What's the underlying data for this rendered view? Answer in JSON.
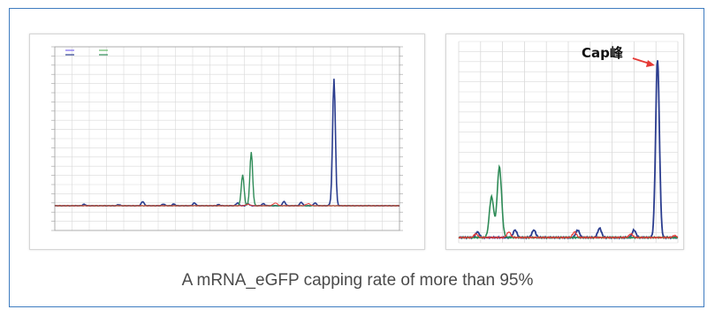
{
  "caption": "A mRNA_eGFP capping rate of more than 95%",
  "annotation": {
    "text": "Cap峰"
  },
  "colors": {
    "frame_border": "#3e7cc0",
    "grid": "#d9d9d9",
    "series_blue": "#2b3d8f",
    "series_green": "#2e8b57",
    "series_purple": "#7b68ee",
    "series_light_green": "#66bb6a",
    "series_red": "#e53935",
    "arrow": "#e53935",
    "caption_text": "#4a4a4a"
  },
  "chart_data": [
    {
      "type": "line",
      "view": "full chromatogram",
      "xlim": [
        4.0,
        24.0
      ],
      "ylim": [
        0.0,
        1.0
      ],
      "grid": true,
      "legend_position": "top-left",
      "series": [
        {
          "peaks": [
            [
              5.7,
              0.01
            ],
            [
              7.7,
              0.008
            ],
            [
              9.1,
              0.03
            ],
            [
              10.3,
              0.012
            ],
            [
              10.9,
              0.012
            ],
            [
              12.1,
              0.02
            ],
            [
              13.5,
              0.008
            ],
            [
              14.6,
              0.02
            ],
            [
              15.2,
              0.015
            ],
            [
              16.1,
              0.015
            ],
            [
              17.3,
              0.03
            ],
            [
              18.3,
              0.025
            ],
            [
              19.1,
              0.02
            ],
            [
              20.0,
              0.01
            ],
            [
              20.2,
              0.9
            ]
          ]
        },
        {
          "peaks": [
            [
              14.9,
              0.22
            ],
            [
              15.4,
              0.38
            ]
          ]
        },
        {
          "peaks": [
            [
              15.2,
              0.01
            ],
            [
              16.8,
              0.02
            ],
            [
              18.7,
              0.015
            ]
          ]
        }
      ]
    },
    {
      "type": "line",
      "view": "zoomed chromatogram",
      "xlim": [
        14.0,
        21.0
      ],
      "ylim": [
        0.0,
        1.0
      ],
      "grid": true,
      "series": [
        {
          "peaks": [
            [
              14.6,
              0.03
            ],
            [
              15.8,
              0.04
            ],
            [
              16.4,
              0.04
            ],
            [
              17.8,
              0.04
            ],
            [
              18.5,
              0.05
            ],
            [
              19.6,
              0.04
            ],
            [
              20.35,
              0.96
            ]
          ]
        },
        {
          "peaks": [
            [
              15.05,
              0.22
            ],
            [
              15.3,
              0.38
            ]
          ]
        },
        {
          "peaks": [
            [
              14.55,
              0.02
            ],
            [
              15.6,
              0.03
            ],
            [
              17.7,
              0.03
            ],
            [
              19.5,
              0.02
            ],
            [
              20.9,
              0.01
            ]
          ]
        }
      ],
      "annotations": [
        {
          "label": "Cap峰",
          "x": 20.35
        }
      ]
    }
  ]
}
